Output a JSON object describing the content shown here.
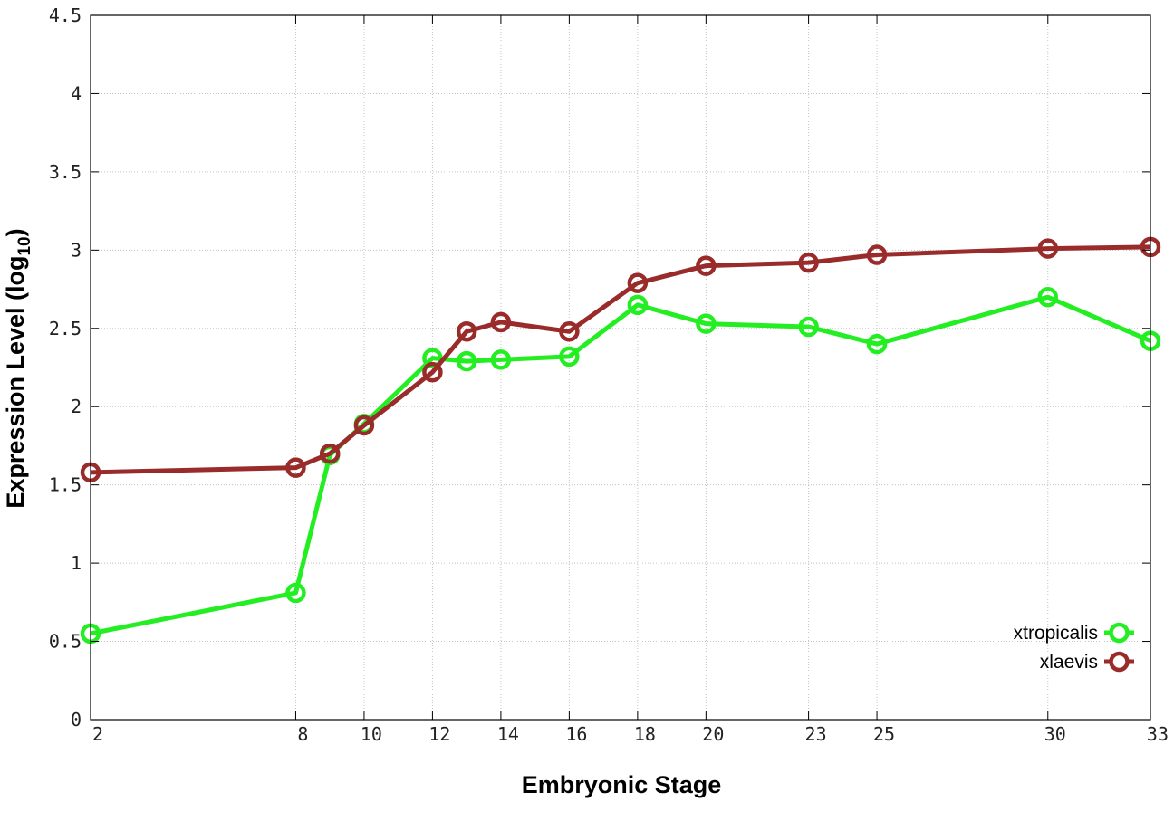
{
  "chart_data": {
    "type": "line",
    "title": "",
    "xlabel": "Embryonic Stage",
    "ylabel_main": "Expression Level (log",
    "ylabel_sub": "10",
    "ylabel_close": ")",
    "xlim": [
      2,
      33
    ],
    "ylim": [
      0,
      4.5
    ],
    "x_ticks": [
      2,
      8,
      10,
      12,
      14,
      16,
      18,
      20,
      23,
      25,
      30,
      33
    ],
    "x_tick_labels": [
      "2",
      "8",
      "10",
      "12",
      "14",
      "16",
      "18",
      "20",
      "23",
      "25",
      "30",
      "33"
    ],
    "x_grid_ticks": [
      8,
      10,
      12,
      14,
      16,
      18,
      20,
      23,
      25,
      30
    ],
    "y_ticks": [
      0,
      0.5,
      1,
      1.5,
      2,
      2.5,
      3,
      3.5,
      4,
      4.5
    ],
    "y_tick_labels": [
      "0",
      "0.5",
      "1",
      "1.5",
      "2",
      "2.5",
      "3",
      "3.5",
      "4",
      "4.5"
    ],
    "grid": true,
    "legend_position": "bottom-right",
    "x": [
      2,
      8,
      9,
      10,
      12,
      13,
      14,
      16,
      18,
      20,
      23,
      25,
      30,
      33
    ],
    "series": [
      {
        "name": "xtropicalis",
        "color": "#22ee22",
        "values": [
          0.55,
          0.81,
          1.69,
          1.89,
          2.31,
          2.29,
          2.3,
          2.32,
          2.65,
          2.53,
          2.51,
          2.4,
          2.7,
          2.42
        ]
      },
      {
        "name": "xlaevis",
        "color": "#992b2b",
        "values": [
          1.58,
          1.61,
          1.7,
          1.88,
          2.22,
          2.48,
          2.54,
          2.48,
          2.79,
          2.9,
          2.92,
          2.97,
          3.01,
          3.02
        ]
      }
    ]
  }
}
